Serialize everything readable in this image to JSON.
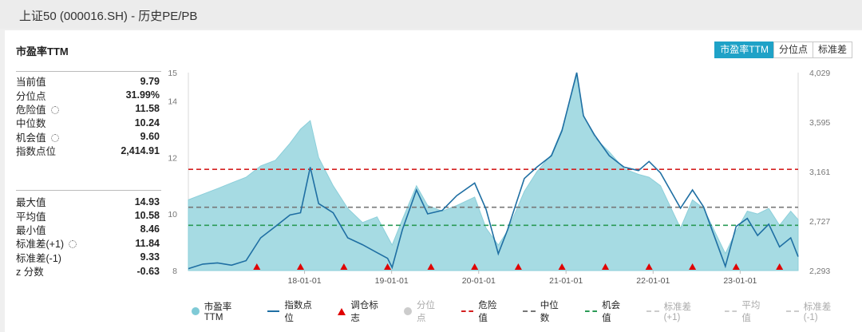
{
  "window": {
    "title": "上证50 (000016.SH) - 历史PE/PB"
  },
  "panel": {
    "title": "市盈率TTM",
    "tabs": [
      {
        "label": "市盈率TTM",
        "active": true
      },
      {
        "label": "分位点",
        "active": false
      },
      {
        "label": "标准差",
        "active": false
      }
    ]
  },
  "stats_top": [
    {
      "label": "当前值",
      "value": "9.79",
      "gear": false
    },
    {
      "label": "分位点",
      "value": "31.99%",
      "gear": false
    },
    {
      "label": "危险值",
      "value": "11.58",
      "gear": true
    },
    {
      "label": "中位数",
      "value": "10.24",
      "gear": false
    },
    {
      "label": "机会值",
      "value": "9.60",
      "gear": true
    },
    {
      "label": "指数点位",
      "value": "2,414.91",
      "gear": false
    }
  ],
  "stats_bottom": [
    {
      "label": "最大值",
      "value": "14.93",
      "gear": false
    },
    {
      "label": "平均值",
      "value": "10.58",
      "gear": false
    },
    {
      "label": "最小值",
      "value": "8.46",
      "gear": false
    },
    {
      "label": "标准差(+1)",
      "value": "11.84",
      "gear": true
    },
    {
      "label": "标准差(-1)",
      "value": "9.33",
      "gear": false
    },
    {
      "label": "z 分数",
      "value": "-0.63",
      "gear": false
    }
  ],
  "legend": [
    {
      "label": "市盈率TTM",
      "kind": "dot",
      "color": "#7fcad6"
    },
    {
      "label": "指数点位",
      "kind": "line",
      "color": "#1f6fa3"
    },
    {
      "label": "调仓标志",
      "kind": "triangle",
      "color": "#e00000"
    },
    {
      "label": "分位点",
      "kind": "dot",
      "color": "#cccccc",
      "disabled": true
    },
    {
      "label": "危险值",
      "kind": "dash",
      "color": "#d42020"
    },
    {
      "label": "中位数",
      "kind": "dash",
      "color": "#777777"
    },
    {
      "label": "机会值",
      "kind": "dash",
      "color": "#2a9a55"
    },
    {
      "label": "标准差(+1)",
      "kind": "dash",
      "color": "#cccccc",
      "disabled": true
    },
    {
      "label": "平均值",
      "kind": "dash",
      "color": "#cccccc",
      "disabled": true
    },
    {
      "label": "标准差(-1)",
      "kind": "dash",
      "color": "#cccccc",
      "disabled": true
    }
  ],
  "chart_data": {
    "type": "area",
    "x_start": "2016-09-01",
    "x_end": "2023-09-01",
    "xticks": [
      "18-01-01",
      "19-01-01",
      "20-01-01",
      "21-01-01",
      "22-01-01",
      "23-01-01"
    ],
    "y_left": {
      "min": 8,
      "max": 15,
      "ticks": [
        8,
        10,
        12,
        14,
        15
      ]
    },
    "y_right": {
      "min": 2293,
      "max": 4029,
      "ticks": [
        "2,293",
        "2,727",
        "3,161",
        "3,595",
        "4,029"
      ]
    },
    "series": [
      {
        "name": "市盈率TTM",
        "axis": "left",
        "color": "#7fcad6",
        "points": [
          [
            "2016-09-01",
            10.5
          ],
          [
            "2016-11-01",
            10.7
          ],
          [
            "2017-01-01",
            10.9
          ],
          [
            "2017-03-01",
            11.1
          ],
          [
            "2017-05-01",
            11.3
          ],
          [
            "2017-07-01",
            11.7
          ],
          [
            "2017-09-01",
            11.9
          ],
          [
            "2017-11-01",
            12.5
          ],
          [
            "2017-12-15",
            13.0
          ],
          [
            "2018-01-25",
            13.3
          ],
          [
            "2018-03-01",
            12.0
          ],
          [
            "2018-05-01",
            11.0
          ],
          [
            "2018-07-01",
            10.2
          ],
          [
            "2018-09-01",
            9.7
          ],
          [
            "2018-11-01",
            9.9
          ],
          [
            "2018-12-15",
            9.2
          ],
          [
            "2019-01-03",
            8.9
          ],
          [
            "2019-02-15",
            9.8
          ],
          [
            "2019-04-15",
            11.0
          ],
          [
            "2019-06-01",
            10.3
          ],
          [
            "2019-08-01",
            10.1
          ],
          [
            "2019-10-01",
            10.3
          ],
          [
            "2019-12-15",
            10.6
          ],
          [
            "2020-02-01",
            9.5
          ],
          [
            "2020-03-23",
            8.9
          ],
          [
            "2020-05-01",
            9.4
          ],
          [
            "2020-07-10",
            10.8
          ],
          [
            "2020-09-01",
            11.5
          ],
          [
            "2020-11-01",
            12.1
          ],
          [
            "2020-12-15",
            13.0
          ],
          [
            "2021-02-15",
            14.9
          ],
          [
            "2021-03-15",
            13.5
          ],
          [
            "2021-05-01",
            12.7
          ],
          [
            "2021-07-01",
            12.2
          ],
          [
            "2021-09-01",
            11.6
          ],
          [
            "2021-11-01",
            11.4
          ],
          [
            "2021-12-15",
            11.3
          ],
          [
            "2022-02-01",
            11.0
          ],
          [
            "2022-04-26",
            9.5
          ],
          [
            "2022-06-15",
            10.5
          ],
          [
            "2022-08-01",
            10.2
          ],
          [
            "2022-10-31",
            8.6
          ],
          [
            "2022-12-15",
            9.4
          ],
          [
            "2023-01-31",
            10.1
          ],
          [
            "2023-03-15",
            10.0
          ],
          [
            "2023-05-01",
            10.2
          ],
          [
            "2023-06-15",
            9.6
          ],
          [
            "2023-08-01",
            10.1
          ],
          [
            "2023-09-01",
            9.8
          ]
        ]
      },
      {
        "name": "指数点位",
        "axis": "right",
        "color": "#1f6fa3",
        "points": [
          [
            "2016-09-01",
            2310
          ],
          [
            "2016-11-01",
            2350
          ],
          [
            "2017-01-01",
            2360
          ],
          [
            "2017-03-01",
            2340
          ],
          [
            "2017-05-01",
            2380
          ],
          [
            "2017-07-01",
            2580
          ],
          [
            "2017-09-01",
            2680
          ],
          [
            "2017-11-01",
            2780
          ],
          [
            "2017-12-15",
            2800
          ],
          [
            "2018-01-25",
            3200
          ],
          [
            "2018-03-01",
            2880
          ],
          [
            "2018-05-01",
            2800
          ],
          [
            "2018-07-01",
            2580
          ],
          [
            "2018-09-01",
            2520
          ],
          [
            "2018-11-01",
            2450
          ],
          [
            "2018-12-15",
            2400
          ],
          [
            "2019-01-03",
            2320
          ],
          [
            "2019-02-15",
            2650
          ],
          [
            "2019-04-15",
            3000
          ],
          [
            "2019-06-01",
            2790
          ],
          [
            "2019-08-01",
            2820
          ],
          [
            "2019-10-01",
            2950
          ],
          [
            "2019-12-15",
            3060
          ],
          [
            "2020-02-01",
            2830
          ],
          [
            "2020-03-23",
            2440
          ],
          [
            "2020-05-01",
            2650
          ],
          [
            "2020-07-10",
            3100
          ],
          [
            "2020-09-01",
            3200
          ],
          [
            "2020-11-01",
            3300
          ],
          [
            "2020-12-15",
            3520
          ],
          [
            "2021-02-15",
            4029
          ],
          [
            "2021-03-15",
            3650
          ],
          [
            "2021-05-01",
            3480
          ],
          [
            "2021-07-01",
            3300
          ],
          [
            "2021-09-01",
            3200
          ],
          [
            "2021-11-01",
            3170
          ],
          [
            "2021-12-15",
            3250
          ],
          [
            "2022-02-01",
            3150
          ],
          [
            "2022-04-26",
            2840
          ],
          [
            "2022-06-15",
            3000
          ],
          [
            "2022-08-01",
            2850
          ],
          [
            "2022-10-31",
            2330
          ],
          [
            "2022-12-15",
            2680
          ],
          [
            "2023-01-31",
            2750
          ],
          [
            "2023-03-15",
            2600
          ],
          [
            "2023-05-01",
            2700
          ],
          [
            "2023-06-15",
            2500
          ],
          [
            "2023-08-01",
            2580
          ],
          [
            "2023-09-01",
            2415
          ]
        ]
      }
    ],
    "reference_lines": [
      {
        "name": "危险值",
        "value": 11.58,
        "color": "#d42020"
      },
      {
        "name": "中位数",
        "value": 10.24,
        "color": "#777777"
      },
      {
        "name": "机会值",
        "value": 9.6,
        "color": "#2a9a55"
      }
    ],
    "rebalance_markers": [
      "2017-06-15",
      "2017-12-15",
      "2018-06-15",
      "2018-12-15",
      "2019-06-15",
      "2019-12-15",
      "2020-06-15",
      "2020-12-15",
      "2021-06-15",
      "2021-12-15",
      "2022-06-15",
      "2022-12-15",
      "2023-06-15"
    ]
  }
}
